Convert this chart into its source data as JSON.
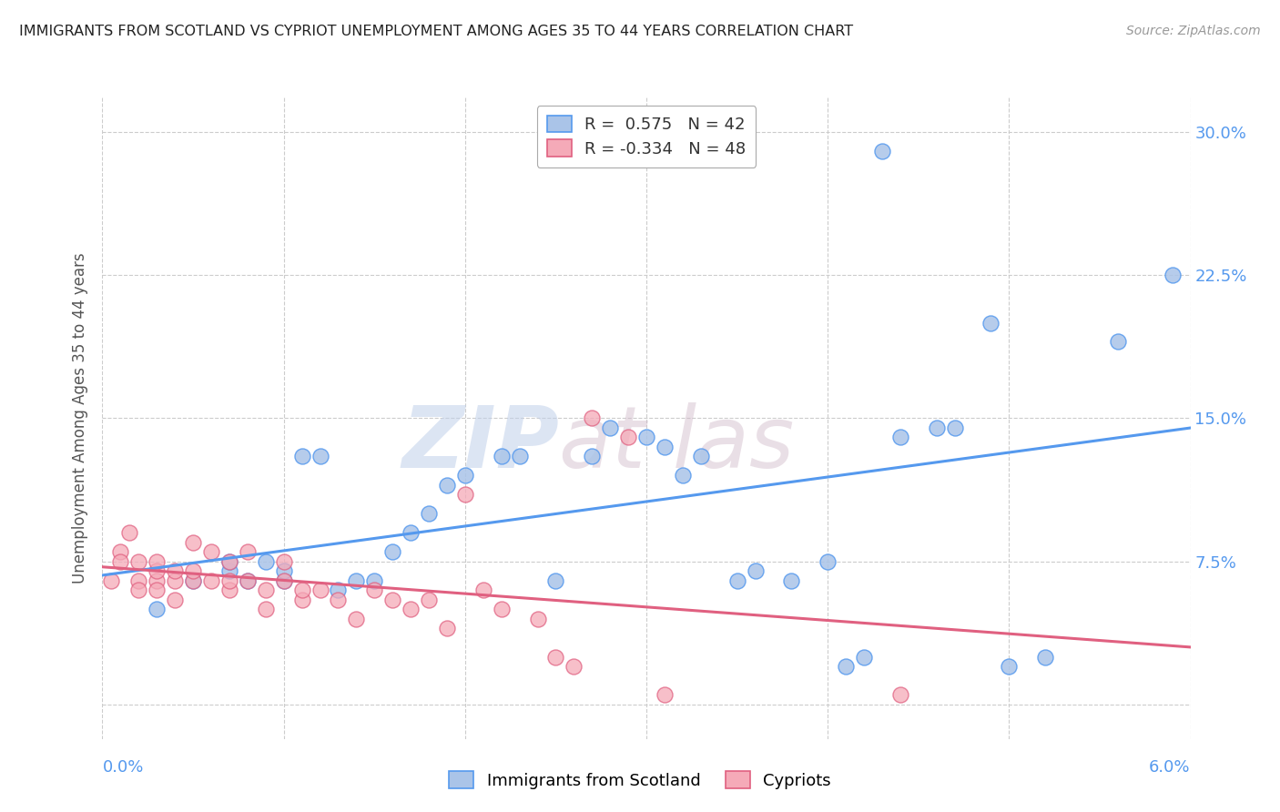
{
  "title": "IMMIGRANTS FROM SCOTLAND VS CYPRIOT UNEMPLOYMENT AMONG AGES 35 TO 44 YEARS CORRELATION CHART",
  "source": "Source: ZipAtlas.com",
  "ylabel": "Unemployment Among Ages 35 to 44 years",
  "ytick_vals": [
    0.0,
    0.075,
    0.15,
    0.225,
    0.3
  ],
  "ytick_labels": [
    "",
    "7.5%",
    "15.0%",
    "22.5%",
    "30.0%"
  ],
  "xmin": 0.0,
  "xmax": 0.06,
  "ymin": -0.018,
  "ymax": 0.318,
  "legend_r1": "R =  0.575",
  "legend_n1": "N = 42",
  "legend_r2": "R = -0.334",
  "legend_n2": "N = 48",
  "series1_color": "#aac4e8",
  "series2_color": "#f5aab8",
  "line1_color": "#5599ee",
  "line2_color": "#e06080",
  "watermark1": "ZIP",
  "watermark2": "atlas",
  "watermark_color1": "#c8d8f0",
  "watermark_color2": "#d8b8c8",
  "label1": "Immigrants from Scotland",
  "label2": "Cypriots",
  "blue_x": [
    0.003,
    0.005,
    0.007,
    0.007,
    0.008,
    0.009,
    0.01,
    0.01,
    0.011,
    0.012,
    0.013,
    0.014,
    0.015,
    0.016,
    0.017,
    0.018,
    0.019,
    0.02,
    0.022,
    0.023,
    0.025,
    0.027,
    0.028,
    0.03,
    0.031,
    0.032,
    0.033,
    0.035,
    0.036,
    0.038,
    0.04,
    0.041,
    0.042,
    0.043,
    0.044,
    0.046,
    0.047,
    0.049,
    0.05,
    0.052,
    0.056,
    0.059
  ],
  "blue_y": [
    0.05,
    0.065,
    0.07,
    0.075,
    0.065,
    0.075,
    0.065,
    0.07,
    0.13,
    0.13,
    0.06,
    0.065,
    0.065,
    0.08,
    0.09,
    0.1,
    0.115,
    0.12,
    0.13,
    0.13,
    0.065,
    0.13,
    0.145,
    0.14,
    0.135,
    0.12,
    0.13,
    0.065,
    0.07,
    0.065,
    0.075,
    0.02,
    0.025,
    0.29,
    0.14,
    0.145,
    0.145,
    0.2,
    0.02,
    0.025,
    0.19,
    0.225
  ],
  "pink_x": [
    0.0005,
    0.001,
    0.001,
    0.0015,
    0.002,
    0.002,
    0.002,
    0.003,
    0.003,
    0.003,
    0.003,
    0.004,
    0.004,
    0.004,
    0.005,
    0.005,
    0.005,
    0.006,
    0.006,
    0.007,
    0.007,
    0.007,
    0.008,
    0.008,
    0.009,
    0.009,
    0.01,
    0.01,
    0.011,
    0.011,
    0.012,
    0.013,
    0.014,
    0.015,
    0.016,
    0.017,
    0.018,
    0.019,
    0.02,
    0.021,
    0.022,
    0.024,
    0.025,
    0.026,
    0.027,
    0.029,
    0.031,
    0.044
  ],
  "pink_y": [
    0.065,
    0.08,
    0.075,
    0.09,
    0.075,
    0.065,
    0.06,
    0.065,
    0.07,
    0.075,
    0.06,
    0.065,
    0.07,
    0.055,
    0.085,
    0.065,
    0.07,
    0.08,
    0.065,
    0.075,
    0.06,
    0.065,
    0.08,
    0.065,
    0.06,
    0.05,
    0.075,
    0.065,
    0.055,
    0.06,
    0.06,
    0.055,
    0.045,
    0.06,
    0.055,
    0.05,
    0.055,
    0.04,
    0.11,
    0.06,
    0.05,
    0.045,
    0.025,
    0.02,
    0.15,
    0.14,
    0.005,
    0.005
  ]
}
